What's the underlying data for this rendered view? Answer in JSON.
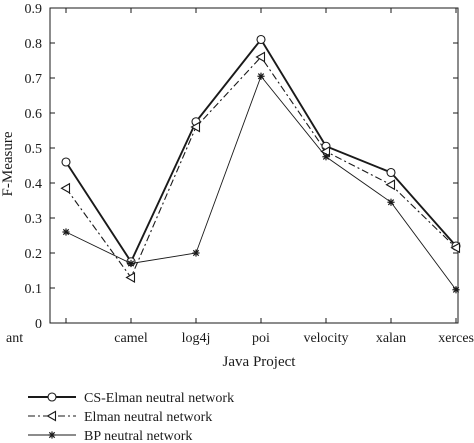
{
  "chart_data": {
    "type": "line",
    "categories": [
      "ant",
      "camel",
      "log4j",
      "poi",
      "velocity",
      "xalan",
      "xerces"
    ],
    "xlabel": "Java Project",
    "ylabel": "F-Measure",
    "ylim": [
      0,
      0.9
    ],
    "yticks": [
      "0",
      "0.1",
      "0.2",
      "0.3",
      "0.4",
      "0.5",
      "0.6",
      "0.7",
      "0.8",
      "0.9"
    ],
    "grid": false,
    "legend_position": "bottom",
    "series": [
      {
        "name": "CS-Elman neutral network",
        "marker": "circle",
        "line_style": "solid",
        "line_weight": "thick",
        "color": "#1a1a1a",
        "values": [
          0.46,
          0.175,
          0.575,
          0.81,
          0.505,
          0.43,
          0.22
        ]
      },
      {
        "name": "Elman neutral network",
        "marker": "triangle-left",
        "line_style": "dash-dot",
        "line_weight": "normal",
        "color": "#1a1a1a",
        "values": [
          0.385,
          0.13,
          0.56,
          0.76,
          0.49,
          0.395,
          0.215
        ]
      },
      {
        "name": "BP neutral network",
        "marker": "asterisk",
        "line_style": "solid",
        "line_weight": "thin",
        "color": "#1a1a1a",
        "values": [
          0.26,
          0.17,
          0.2,
          0.705,
          0.475,
          0.345,
          0.095
        ]
      }
    ]
  }
}
